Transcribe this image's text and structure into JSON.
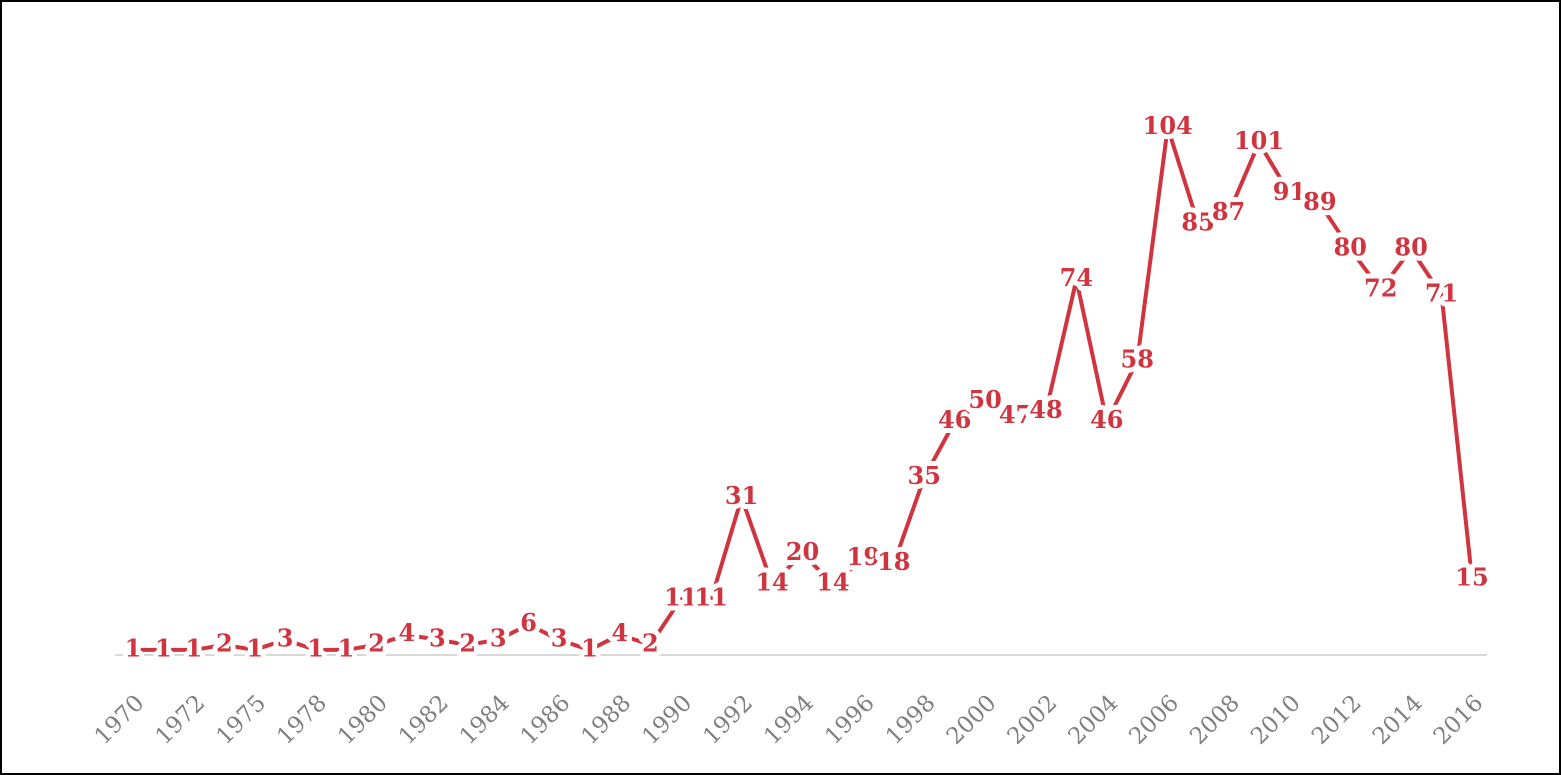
{
  "chart_data": {
    "type": "line",
    "categories": [
      "1970",
      null,
      "1972",
      null,
      "1975",
      null,
      "1978",
      null,
      "1980",
      null,
      "1982",
      null,
      "1984",
      null,
      "1986",
      null,
      "1988",
      null,
      "1990",
      null,
      "1992",
      null,
      "1994",
      null,
      "1996",
      null,
      "1998",
      null,
      "2000",
      null,
      "2002",
      null,
      "2004",
      null,
      "2006",
      null,
      "2008",
      null,
      "2010",
      null,
      "2012",
      null,
      "2014",
      null,
      "2016"
    ],
    "series": [
      {
        "color": "#d0343e",
        "values": [
          1,
          1,
          1,
          2,
          1,
          3,
          1,
          1,
          2,
          4,
          3,
          2,
          3,
          6,
          3,
          1,
          4,
          2,
          11,
          11,
          31,
          14,
          20,
          14,
          19,
          18,
          35,
          46,
          50,
          47,
          48,
          74,
          46,
          58,
          104,
          85,
          87,
          101,
          91,
          89,
          80,
          72,
          80,
          71,
          15
        ]
      }
    ],
    "ylim": [
      0,
      110
    ]
  }
}
